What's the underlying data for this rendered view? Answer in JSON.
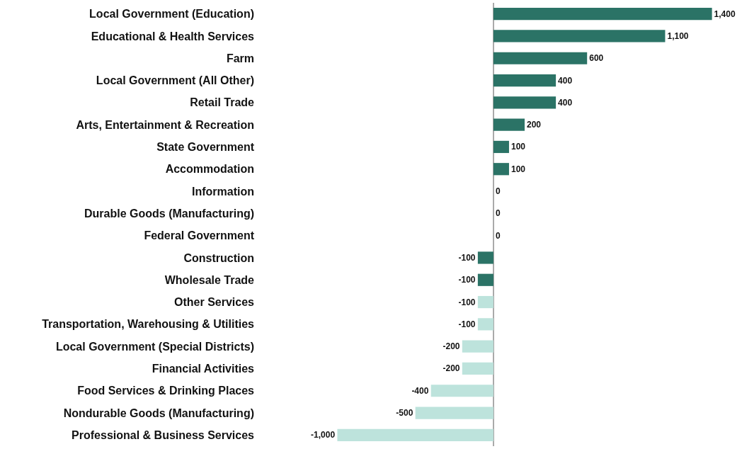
{
  "chart_data": {
    "type": "bar",
    "orientation": "horizontal",
    "categories": [
      "Local Government (Education)",
      "Educational & Health Services",
      "Farm",
      "Local Government (All Other)",
      "Retail Trade",
      "Arts, Entertainment & Recreation",
      "State Government",
      "Accommodation",
      "Information",
      "Durable Goods (Manufacturing)",
      "Federal Government",
      "Construction",
      "Wholesale Trade",
      "Other Services",
      "Transportation, Warehousing & Utilities",
      "Local Government (Special Districts)",
      "Financial Activities",
      "Food Services & Drinking Places",
      "Nondurable Goods (Manufacturing)",
      "Professional & Business Services"
    ],
    "values": [
      1400,
      1100,
      600,
      400,
      400,
      200,
      100,
      100,
      0,
      0,
      0,
      -100,
      -100,
      -100,
      -100,
      -200,
      -200,
      -400,
      -500,
      -1000
    ],
    "value_labels": [
      "1,400",
      "1,100",
      "600",
      "400",
      "400",
      "200",
      "100",
      "100",
      "0",
      "0",
      "0",
      "-100",
      "-100",
      "-100",
      "-100",
      "-200",
      "-200",
      "-400",
      "-500",
      "-1,000"
    ],
    "colors": [
      "#2b7366",
      "#2b7366",
      "#2b7366",
      "#2b7366",
      "#2b7366",
      "#2b7366",
      "#2b7366",
      "#2b7366",
      "#2b7366",
      "#2b7366",
      "#2b7366",
      "#2b7366",
      "#2b7366",
      "#bde3dc",
      "#bde3dc",
      "#bde3dc",
      "#bde3dc",
      "#bde3dc",
      "#bde3dc",
      "#bde3dc"
    ],
    "tick_labels": "y",
    "grid": false,
    "legend": false
  }
}
